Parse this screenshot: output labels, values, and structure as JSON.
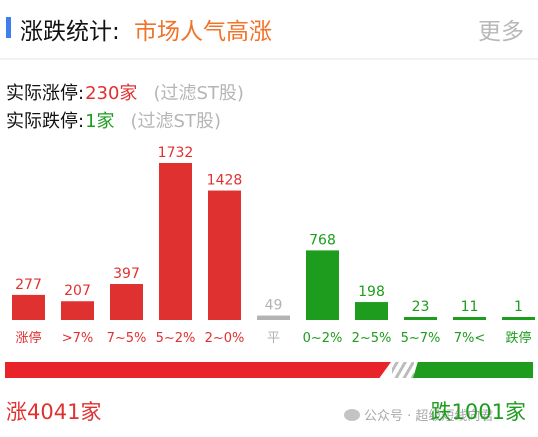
{
  "header": {
    "title": "涨跌统计:",
    "subtitle": "市场人气高涨",
    "more": "更多"
  },
  "stats": {
    "limit_up_label": "实际涨停:",
    "limit_up_value": "230家",
    "limit_down_label": "实际跌停:",
    "limit_down_value": "1家",
    "filter_note": "(过滤ST股)"
  },
  "colors": {
    "up": "#e03131",
    "down": "#1e9c1e",
    "flat": "#b3b3b3",
    "accent": "#3d7ff0",
    "subtitle": "#f0732a"
  },
  "chart_data": {
    "type": "bar",
    "categories": [
      "涨停",
      ">7%",
      "7~5%",
      "5~2%",
      "2~0%",
      "平",
      "0~2%",
      "2~5%",
      "5~7%",
      "7%<",
      "跌停"
    ],
    "values": [
      277,
      207,
      397,
      1732,
      1428,
      49,
      768,
      198,
      23,
      11,
      1
    ],
    "bar_colors": [
      "up",
      "up",
      "up",
      "up",
      "up",
      "flat",
      "down",
      "down",
      "down",
      "down",
      "down"
    ]
  },
  "summary": {
    "up_total": "涨4041家",
    "down_total": "跌1001家",
    "up_count": 4041,
    "down_count": 1001
  },
  "watermark": {
    "text": "公众号 · 超级短线向君"
  }
}
